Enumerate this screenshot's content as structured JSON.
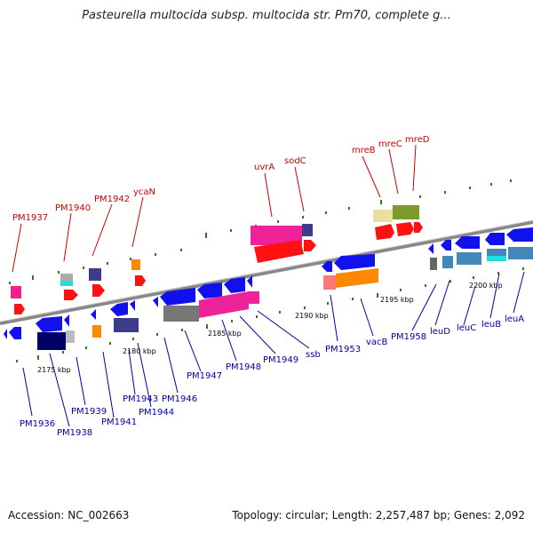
{
  "title": "Pasteurella multocida subsp. multocida str. Pm70, complete g...",
  "footer": {
    "accession": "Accession: NC_002663",
    "topology": "Topology: circular; Length: 2,257,487 bp; Genes: 2,092"
  },
  "scale_labels": [
    "2175 kbp",
    "2180 kbp",
    "2185 kbp",
    "2190 kbp",
    "2195 kbp",
    "2200 kbp"
  ],
  "top_labels": [
    "PM1937",
    "PM1940",
    "PM1942",
    "ycaN",
    "uvrA",
    "sodC",
    "mreB",
    "mreC",
    "mreD"
  ],
  "bottom_labels": [
    "PM1936",
    "PM1938",
    "PM1939",
    "PM1941",
    "PM1943",
    "PM1944",
    "PM1946",
    "PM1947",
    "PM1948",
    "PM1949",
    "ssb",
    "PM1953",
    "vacB",
    "PM1958",
    "leuD",
    "leuC",
    "leuB",
    "leuA"
  ],
  "colors": {
    "top_label": "#cc0000",
    "bottom_label": "#0000aa",
    "backbone": "#888888"
  }
}
